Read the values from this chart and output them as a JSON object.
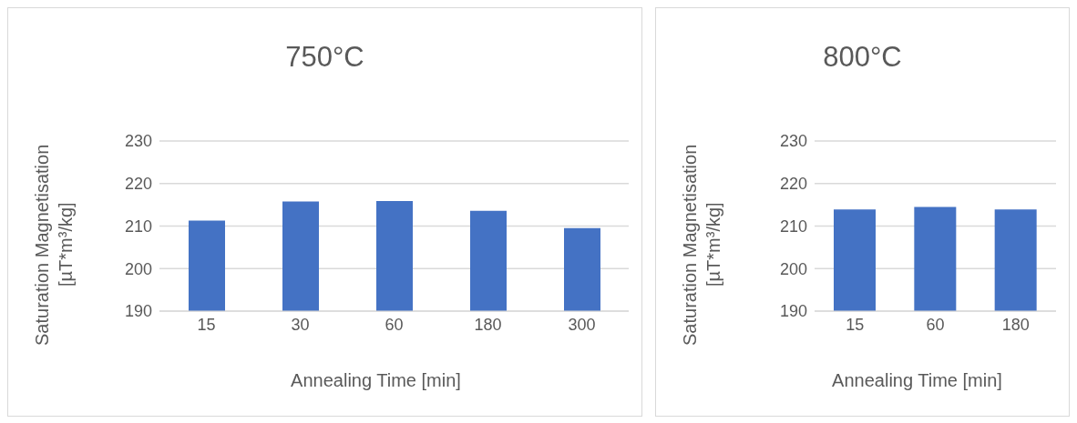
{
  "chart_data": [
    {
      "type": "bar",
      "title": "750°C",
      "xlabel": "Annealing Time [min]",
      "ylabel": "Saturation Magnetisation [µT*m³/kg]",
      "categories": [
        "15",
        "30",
        "60",
        "180",
        "300"
      ],
      "values": [
        211.3,
        215.8,
        215.9,
        213.6,
        209.5
      ],
      "color": "#4472c4",
      "ylim": [
        190,
        230
      ],
      "yticks": [
        190,
        200,
        210,
        220,
        230
      ],
      "grid": "y"
    },
    {
      "type": "bar",
      "title": "800°C",
      "xlabel": "Annealing Time [min]",
      "ylabel": "Saturation Magnetisation [µT*m³/kg]",
      "categories": [
        "15",
        "60",
        "180"
      ],
      "values": [
        213.9,
        214.5,
        213.9
      ],
      "color": "#4472c4",
      "ylim": [
        190,
        230
      ],
      "yticks": [
        190,
        200,
        210,
        220,
        230
      ],
      "grid": "y"
    }
  ]
}
